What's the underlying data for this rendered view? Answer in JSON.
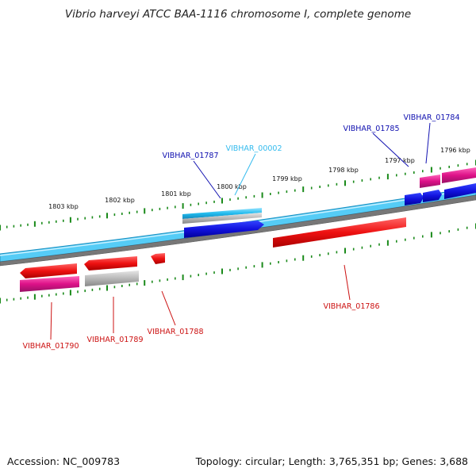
{
  "title": "Vibrio harveyi ATCC BAA-1116 chromosome I, complete genome",
  "footer": {
    "accession": "Accession: NC_009783",
    "summary": "Topology: circular; Length: 3,765,351 bp; Genes: 3,688"
  },
  "scale_ticks": [
    "1803 kbp",
    "1802 kbp",
    "1801 kbp",
    "1800 kbp",
    "1799 kbp",
    "1798 kbp",
    "1797 kbp",
    "1796 kbp"
  ],
  "gene_labels": {
    "vibhar_01784": "VIBHAR_01784",
    "vibhar_01785": "VIBHAR_01785",
    "vibhar_01787": "VIBHAR_01787",
    "vibhar_00002": "VIBHAR_00002",
    "vibhar_01786": "VIBHAR_01786",
    "vibhar_01788": "VIBHAR_01788",
    "vibhar_01789": "VIBHAR_01789",
    "vibhar_01790": "VIBHAR_01790"
  },
  "colors": {
    "forward_label": "#1010b0",
    "forward_rna_label": "#33bbee",
    "reverse_label": "#cc1111",
    "cds_red": "#ee1111",
    "cds_blue": "#1111dd",
    "rna_magenta": "#dd1188",
    "rna_cyan": "#22bbee",
    "gray_feature": "#b8b8b8",
    "backbone_blue": "#44c8f4",
    "backbone_gray": "#777777",
    "tick_green": "#1a8a1a"
  }
}
